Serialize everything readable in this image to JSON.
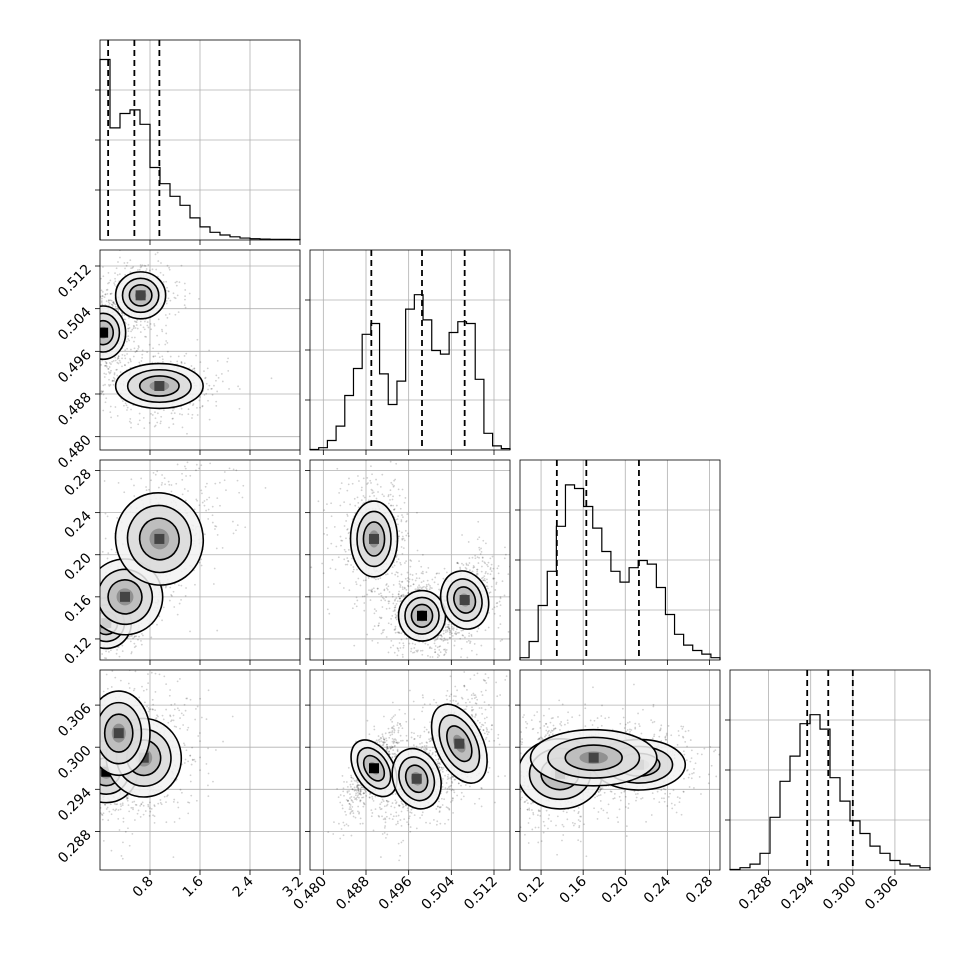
{
  "chart_data": {
    "type": "corner",
    "params": [
      {
        "range": [
          0.0,
          3.2
        ],
        "ticks": [
          0.8,
          1.6,
          2.4,
          3.2
        ],
        "tick_labels": [
          "0.8",
          "1.6",
          "2.4",
          "3.2"
        ]
      },
      {
        "range": [
          0.4775,
          0.515
        ],
        "ticks": [
          0.48,
          0.488,
          0.496,
          0.504,
          0.512
        ],
        "tick_labels": [
          "0.480",
          "0.488",
          "0.496",
          "0.504",
          "0.512"
        ]
      },
      {
        "range": [
          0.1,
          0.29
        ],
        "ticks": [
          0.12,
          0.16,
          0.2,
          0.24,
          0.28
        ],
        "tick_labels": [
          "0.12",
          "0.16",
          "0.20",
          "0.24",
          "0.28"
        ]
      },
      {
        "range": [
          0.2825,
          0.311
        ],
        "ticks": [
          0.288,
          0.294,
          0.3,
          0.306
        ],
        "tick_labels": [
          "0.288",
          "0.294",
          "0.300",
          "0.306"
        ]
      }
    ],
    "quantiles": [
      [
        0.13,
        0.55,
        0.95
      ],
      [
        0.489,
        0.4985,
        0.5065
      ],
      [
        0.135,
        0.163,
        0.213
      ],
      [
        0.2935,
        0.2965,
        0.3
      ]
    ],
    "histograms": [
      {
        "edges_range": [
          0.0,
          3.2
        ],
        "counts": [
          1.0,
          0.62,
          0.7,
          0.72,
          0.64,
          0.4,
          0.31,
          0.24,
          0.19,
          0.12,
          0.07,
          0.04,
          0.025,
          0.015,
          0.008,
          0.004,
          0.002,
          0.001,
          0.0005,
          0.0003
        ]
      },
      {
        "edges_range": [
          0.4775,
          0.515
        ],
        "counts": [
          0.0,
          0.01,
          0.05,
          0.13,
          0.3,
          0.45,
          0.64,
          0.7,
          0.42,
          0.25,
          0.38,
          0.78,
          0.86,
          0.72,
          0.55,
          0.53,
          0.65,
          0.71,
          0.7,
          0.39,
          0.09,
          0.02,
          0.005
        ]
      },
      {
        "edges_range": [
          0.1,
          0.29
        ],
        "counts": [
          0.01,
          0.1,
          0.3,
          0.49,
          0.74,
          0.97,
          0.95,
          0.85,
          0.73,
          0.6,
          0.49,
          0.43,
          0.51,
          0.55,
          0.53,
          0.4,
          0.25,
          0.14,
          0.08,
          0.05,
          0.03,
          0.01
        ]
      },
      {
        "edges_range": [
          0.2825,
          0.311
        ],
        "counts": [
          0.0,
          0.01,
          0.03,
          0.09,
          0.29,
          0.49,
          0.63,
          0.81,
          0.86,
          0.78,
          0.51,
          0.38,
          0.27,
          0.2,
          0.13,
          0.09,
          0.05,
          0.03,
          0.02,
          0.01
        ]
      }
    ],
    "densities": [
      {
        "row": 1,
        "col": 0,
        "modes": [
          {
            "x": 0.05,
            "y": 0.4995,
            "sx": 0.18,
            "sy": 0.0025,
            "w": 1.0,
            "rho": 0.0
          },
          {
            "x": 0.65,
            "y": 0.5065,
            "sx": 0.2,
            "sy": 0.0022,
            "w": 0.6,
            "rho": 0.0
          },
          {
            "x": 0.95,
            "y": 0.4895,
            "sx": 0.35,
            "sy": 0.0021,
            "w": 0.8,
            "rho": 0.0
          }
        ]
      },
      {
        "row": 2,
        "col": 0,
        "modes": [
          {
            "x": 0.1,
            "y": 0.135,
            "sx": 0.2,
            "sy": 0.012,
            "w": 1.0,
            "rho": 0.3
          },
          {
            "x": 0.4,
            "y": 0.16,
            "sx": 0.3,
            "sy": 0.018,
            "w": 0.7,
            "rho": 0.8
          },
          {
            "x": 0.95,
            "y": 0.215,
            "sx": 0.35,
            "sy": 0.022,
            "w": 0.8,
            "rho": 0.4
          }
        ]
      },
      {
        "row": 2,
        "col": 1,
        "modes": [
          {
            "x": 0.4895,
            "y": 0.215,
            "sx": 0.0022,
            "sy": 0.018,
            "w": 0.9,
            "rho": 0.0
          },
          {
            "x": 0.4985,
            "y": 0.142,
            "sx": 0.0022,
            "sy": 0.012,
            "w": 1.0,
            "rho": 0.0
          },
          {
            "x": 0.5065,
            "y": 0.157,
            "sx": 0.0022,
            "sy": 0.014,
            "w": 0.9,
            "rho": 0.4
          }
        ]
      },
      {
        "row": 3,
        "col": 0,
        "modes": [
          {
            "x": 0.1,
            "y": 0.2965,
            "sx": 0.25,
            "sy": 0.0022,
            "w": 1.0,
            "rho": 0.0
          },
          {
            "x": 0.7,
            "y": 0.2985,
            "sx": 0.3,
            "sy": 0.0028,
            "w": 0.8,
            "rho": 0.2
          },
          {
            "x": 0.3,
            "y": 0.302,
            "sx": 0.25,
            "sy": 0.003,
            "w": 0.4,
            "rho": 0.0
          }
        ]
      },
      {
        "row": 3,
        "col": 1,
        "modes": [
          {
            "x": 0.4895,
            "y": 0.297,
            "sx": 0.0018,
            "sy": 0.0022,
            "w": 1.0,
            "rho": 0.8
          },
          {
            "x": 0.4975,
            "y": 0.2955,
            "sx": 0.0022,
            "sy": 0.0022,
            "w": 0.9,
            "rho": 0.5
          },
          {
            "x": 0.5055,
            "y": 0.3005,
            "sx": 0.0022,
            "sy": 0.003,
            "w": 0.9,
            "rho": 0.5
          }
        ]
      },
      {
        "row": 3,
        "col": 2,
        "modes": [
          {
            "x": 0.138,
            "y": 0.2962,
            "sx": 0.02,
            "sy": 0.0025,
            "w": 1.0,
            "rho": 0.0
          },
          {
            "x": 0.213,
            "y": 0.2975,
            "sx": 0.022,
            "sy": 0.0018,
            "w": 0.7,
            "rho": 0.0
          },
          {
            "x": 0.17,
            "y": 0.2985,
            "sx": 0.03,
            "sy": 0.002,
            "w": 0.4,
            "rho": 0.0
          }
        ]
      }
    ],
    "grid": true,
    "legend": "none"
  }
}
